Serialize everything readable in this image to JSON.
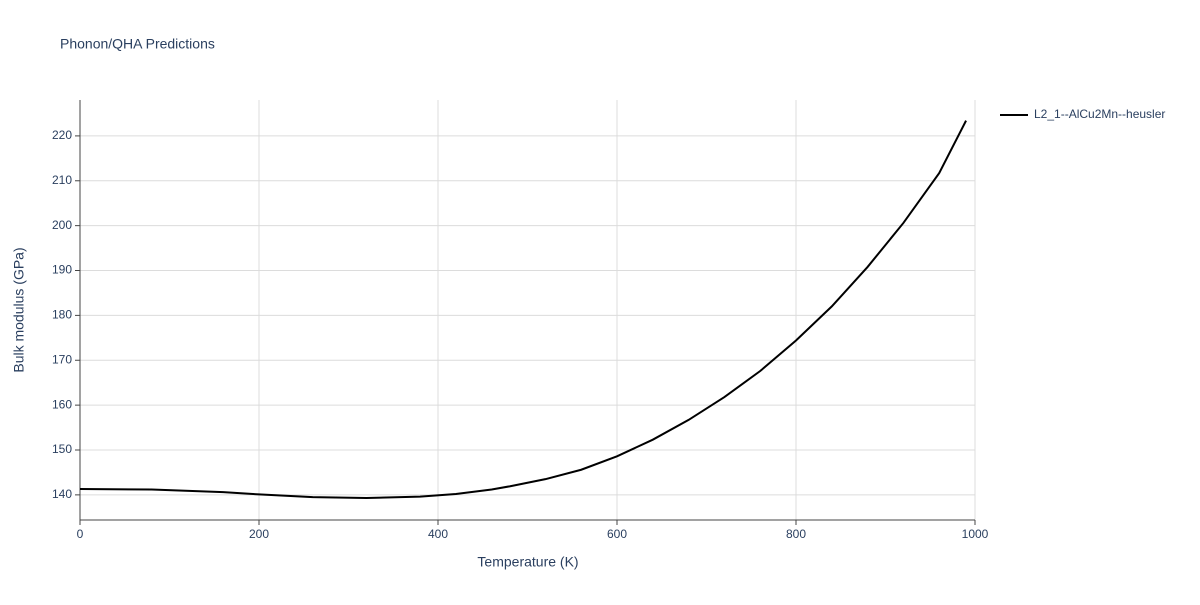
{
  "chart_data": {
    "type": "line",
    "title": "Phonon/QHA Predictions",
    "x_label": "Temperature (K)",
    "y_label": "Bulk modulus (GPa)",
    "x": [
      0,
      80,
      160,
      200,
      260,
      320,
      380,
      420,
      460,
      480,
      520,
      560,
      600,
      640,
      680,
      720,
      760,
      800,
      840,
      880,
      920,
      960,
      990
    ],
    "series": [
      {
        "name": "L2_1--AlCu2Mn--heusler",
        "color": "#000000",
        "values": [
          141.3,
          141.2,
          140.6,
          140.1,
          139.5,
          139.3,
          139.6,
          140.2,
          141.2,
          141.9,
          143.5,
          145.6,
          148.6,
          152.3,
          156.7,
          161.8,
          167.6,
          174.4,
          182.0,
          190.8,
          200.6,
          211.7,
          223.4
        ]
      }
    ],
    "xlim": [
      0,
      1000
    ],
    "xticks": [
      0,
      200,
      400,
      600,
      800,
      1000
    ],
    "ylim": [
      134.4,
      228
    ],
    "yticks": [
      140,
      150,
      160,
      170,
      180,
      190,
      200,
      210,
      220
    ],
    "grid": true,
    "legend": "right"
  }
}
